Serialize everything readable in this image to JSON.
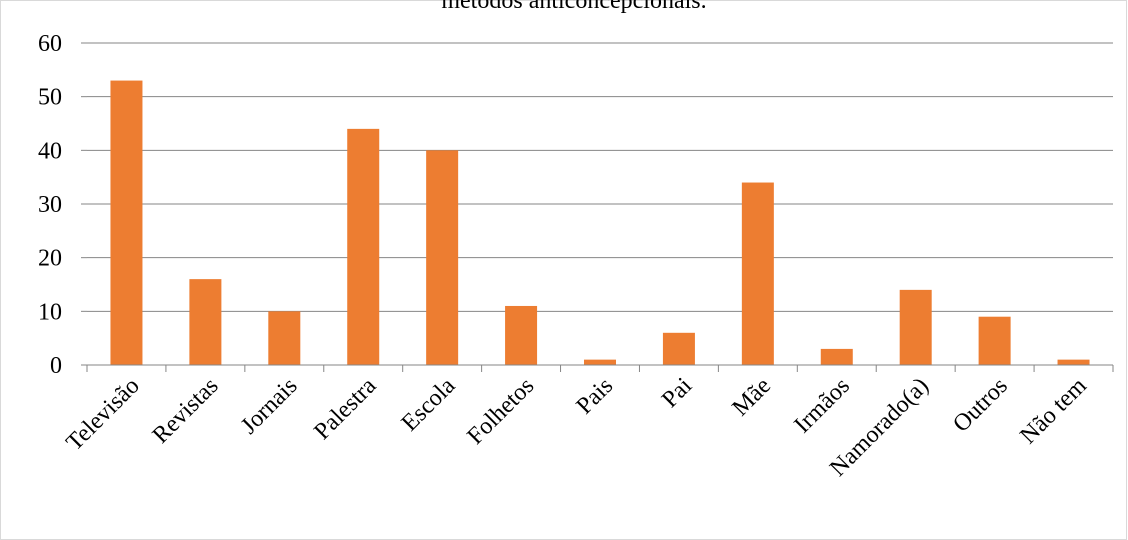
{
  "chart_data": {
    "type": "bar",
    "title": "métodos anticoncepcionais.",
    "xlabel": "",
    "ylabel": "",
    "ylim": [
      0,
      60
    ],
    "yticks": [
      "0",
      "10",
      "20",
      "30",
      "40",
      "50",
      "60"
    ],
    "grid": true,
    "legend": "none",
    "bar_color": "#ed7d31",
    "categories": [
      "Televisão",
      "Revistas",
      "Jornais",
      "Palestra",
      "Escola",
      "Folhetos",
      "Pais",
      "Pai",
      "Mãe",
      "Irmãos",
      "Namorado(a)",
      "Outros",
      "Não tem"
    ],
    "values": [
      53,
      16,
      10,
      44,
      40,
      11,
      1,
      6,
      34,
      3,
      14,
      9,
      1
    ]
  }
}
